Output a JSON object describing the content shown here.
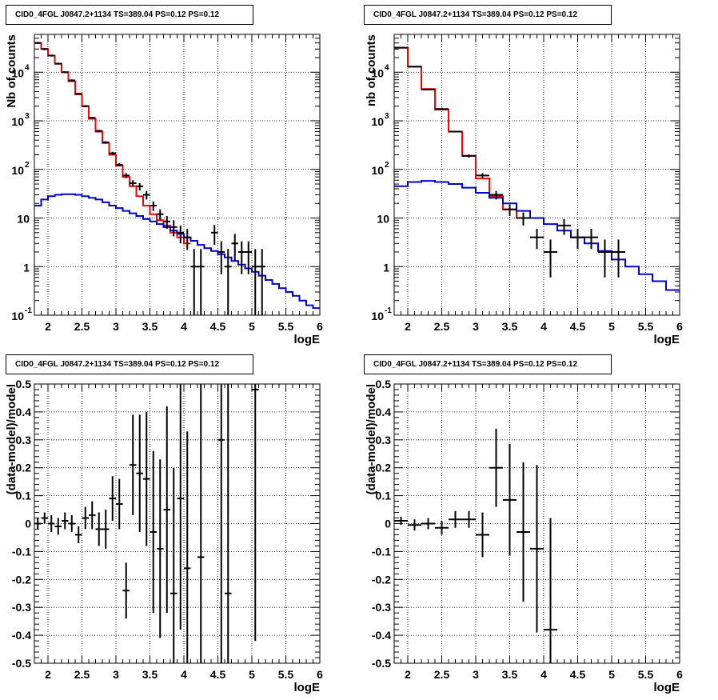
{
  "chart_data": [
    {
      "type": "step+errorbar",
      "title": "CID0_4FGL J0847.2+1134 TS=389.04 PS=0.12 PS=0.12",
      "xlabel": "logE",
      "ylabel": "Nb of counts",
      "xlim": [
        1.8,
        6.0
      ],
      "ylim": [
        0.1,
        60000
      ],
      "yscale": "log",
      "xticks": [
        "2",
        "2.5",
        "3",
        "3.5",
        "4",
        "4.5",
        "5",
        "5.5",
        "6"
      ],
      "yticks": [
        "10^-1",
        "1",
        "10",
        "10^2",
        "10^3",
        "10^4"
      ],
      "grid": true,
      "series": [
        {
          "color": "#ff0000",
          "kind": "step",
          "xedges": [
            1.8,
            1.9,
            2.0,
            2.1,
            2.2,
            2.3,
            2.4,
            2.5,
            2.6,
            2.7,
            2.8,
            2.9,
            3.0,
            3.1,
            3.2,
            3.3,
            3.4,
            3.5,
            3.6,
            3.7,
            3.8,
            3.9,
            4.0,
            4.1
          ],
          "values": [
            40000,
            30000,
            22000,
            15000,
            10000,
            6500,
            3500,
            2000,
            1100,
            600,
            350,
            200,
            120,
            70,
            45,
            28,
            18,
            12,
            9,
            7,
            5,
            4,
            3
          ]
        },
        {
          "color": "#0000cc",
          "kind": "step",
          "xedges": [
            1.8,
            1.9,
            2.0,
            2.1,
            2.2,
            2.3,
            2.4,
            2.5,
            2.6,
            2.7,
            2.8,
            2.9,
            3.0,
            3.1,
            3.2,
            3.3,
            3.4,
            3.5,
            3.6,
            3.7,
            3.8,
            3.9,
            4.0,
            4.1,
            4.2,
            4.3,
            4.4,
            4.5,
            4.6,
            4.7,
            4.8,
            4.9,
            5.0,
            5.1,
            5.2,
            5.3,
            5.4,
            5.5,
            5.6,
            5.7,
            5.8,
            5.9,
            6.0
          ],
          "values": [
            18,
            24,
            28,
            30,
            31,
            31,
            30,
            28,
            26,
            24,
            21,
            18,
            16,
            14,
            12.5,
            11,
            9.5,
            8.5,
            7.5,
            6.5,
            5.5,
            4.7,
            4,
            3.4,
            2.8,
            2.4,
            2.1,
            1.8,
            1.55,
            1.3,
            1.1,
            0.92,
            0.78,
            0.65,
            0.53,
            0.44,
            0.36,
            0.3,
            0.25,
            0.2,
            0.16,
            0.14
          ]
        },
        {
          "color": "#000000",
          "kind": "points",
          "x": [
            1.85,
            1.95,
            2.05,
            2.15,
            2.25,
            2.35,
            2.45,
            2.55,
            2.65,
            2.75,
            2.85,
            2.95,
            3.05,
            3.15,
            3.25,
            3.35,
            3.45,
            3.55,
            3.65,
            3.75,
            3.85,
            3.95,
            4.05,
            4.15,
            4.25,
            4.45,
            4.55,
            4.65,
            4.75,
            4.85,
            4.95,
            5.05,
            5.15
          ],
          "y": [
            40000,
            30000,
            22000,
            15000,
            10000,
            6800,
            3600,
            2000,
            1150,
            620,
            360,
            215,
            125,
            75,
            52,
            45,
            30,
            18,
            12,
            8.5,
            6.5,
            5,
            4,
            1,
            1,
            5,
            2,
            1,
            3,
            2,
            2,
            1,
            1
          ],
          "ylo": [
            38000,
            28500,
            21000,
            14300,
            9600,
            6500,
            3450,
            1900,
            1100,
            590,
            340,
            200,
            115,
            66,
            44,
            37,
            24,
            14,
            9,
            6,
            4.2,
            3,
            2.2,
            0.1,
            0.1,
            2.8,
            0.7,
            0.1,
            1.3,
            0.7,
            0.7,
            0.1,
            0.1
          ],
          "yhi": [
            42000,
            31500,
            23000,
            15700,
            10400,
            7100,
            3750,
            2100,
            1200,
            650,
            380,
            230,
            135,
            84,
            60,
            52,
            36,
            22,
            15,
            11,
            9,
            7,
            6,
            2.3,
            2.3,
            7.2,
            3.3,
            2.3,
            4.7,
            3.3,
            3.3,
            2.3,
            2.3
          ]
        }
      ]
    },
    {
      "type": "step+errorbar",
      "title": "CID0_4FGL J0847.2+1134 TS=389.04 PS=0.12 PS=0.12",
      "xlabel": "logE",
      "ylabel": "nb of counts",
      "xlim": [
        1.8,
        6.0
      ],
      "ylim": [
        0.1,
        60000
      ],
      "yscale": "log",
      "xticks": [
        "2",
        "2.5",
        "3",
        "3.5",
        "4",
        "4.5",
        "5",
        "5.5",
        "6"
      ],
      "yticks": [
        "10^-1",
        "1",
        "10",
        "10^2",
        "10^3",
        "10^4"
      ],
      "grid": true,
      "series": [
        {
          "color": "#ff0000",
          "kind": "step",
          "xedges": [
            1.8,
            2.0,
            2.2,
            2.4,
            2.6,
            2.8,
            3.0,
            3.2,
            3.4,
            3.6,
            3.8
          ],
          "values": [
            32000,
            13000,
            4500,
            1700,
            600,
            190,
            65,
            28,
            15,
            10
          ]
        },
        {
          "color": "#0000cc",
          "kind": "step",
          "xedges": [
            1.8,
            2.0,
            2.2,
            2.4,
            2.6,
            2.8,
            3.0,
            3.2,
            3.4,
            3.6,
            3.8,
            4.0,
            4.2,
            4.4,
            4.6,
            4.8,
            5.0,
            5.2,
            5.4,
            5.6,
            5.8,
            6.0
          ],
          "values": [
            45,
            55,
            58,
            55,
            50,
            42,
            33,
            26,
            20,
            14,
            10,
            7.5,
            5.5,
            4,
            3,
            2.1,
            1.4,
            1,
            0.7,
            0.5,
            0.33
          ]
        },
        {
          "color": "#000000",
          "kind": "points",
          "x": [
            1.9,
            2.1,
            2.3,
            2.5,
            2.7,
            2.9,
            3.1,
            3.3,
            3.5,
            3.7,
            3.9,
            4.1,
            4.3,
            4.5,
            4.7,
            4.9,
            5.1
          ],
          "y": [
            32000,
            13000,
            4400,
            1750,
            600,
            190,
            75,
            30,
            15,
            10,
            4,
            2,
            7,
            4,
            4,
            2,
            2
          ],
          "ylo": [
            31000,
            12600,
            4250,
            1650,
            580,
            175,
            66,
            24,
            11,
            7,
            2.3,
            0.6,
            4.5,
            2.3,
            2.3,
            0.6,
            0.6
          ],
          "yhi": [
            33000,
            13400,
            4550,
            1850,
            620,
            205,
            84,
            36,
            19,
            13,
            6,
            3.6,
            9.5,
            6,
            6,
            3.6,
            3.6
          ]
        }
      ]
    },
    {
      "type": "errorbar",
      "title": "CID0_4FGL J0847.2+1134 TS=389.04 PS=0.12 PS=0.12",
      "xlabel": "logE",
      "ylabel": "(data-model)/model",
      "xlim": [
        1.8,
        6.0
      ],
      "ylim": [
        -0.5,
        0.5
      ],
      "xticks": [
        "2",
        "2.5",
        "3",
        "3.5",
        "4",
        "4.5",
        "5",
        "5.5",
        "6"
      ],
      "yticks": [
        "-0.5",
        "-0.4",
        "-0.3",
        "-0.2",
        "-0.1",
        "0",
        "0.1",
        "0.2",
        "0.3",
        "0.4",
        "0.5"
      ],
      "grid": true,
      "series": [
        {
          "color": "#000000",
          "kind": "points",
          "x": [
            1.85,
            1.95,
            2.05,
            2.15,
            2.25,
            2.35,
            2.45,
            2.55,
            2.65,
            2.75,
            2.85,
            2.95,
            3.05,
            3.15,
            3.25,
            3.35,
            3.45,
            3.55,
            3.65,
            3.75,
            3.85,
            3.95,
            4.05,
            4.25,
            4.55,
            4.65,
            5.05
          ],
          "y": [
            0.0,
            0.02,
            0.0,
            -0.01,
            0.01,
            0.0,
            -0.04,
            0.02,
            0.03,
            -0.02,
            -0.02,
            0.09,
            0.07,
            -0.24,
            0.21,
            0.18,
            0.16,
            -0.03,
            -0.09,
            0.05,
            -0.25,
            0.09,
            -0.16,
            -0.12,
            0.3,
            -0.25,
            0.48
          ],
          "err": [
            0.02,
            0.02,
            0.03,
            0.03,
            0.03,
            0.03,
            0.03,
            0.04,
            0.05,
            0.06,
            0.07,
            0.08,
            0.09,
            0.1,
            0.18,
            0.21,
            0.24,
            0.29,
            0.32,
            0.37,
            0.45,
            0.47,
            0.49,
            0.7,
            0.8,
            0.8,
            0.9
          ]
        }
      ]
    },
    {
      "type": "errorbar",
      "title": "CID0_4FGL J0847.2+1134 TS=389.04 PS=0.12 PS=0.12",
      "xlabel": "logE",
      "ylabel": "(data-model)/model",
      "xlim": [
        1.8,
        6.0
      ],
      "ylim": [
        -0.5,
        0.5
      ],
      "xticks": [
        "2",
        "2.5",
        "3",
        "3.5",
        "4",
        "4.5",
        "5",
        "5.5",
        "6"
      ],
      "yticks": [
        "-0.5",
        "-0.4",
        "-0.3",
        "-0.2",
        "-0.1",
        "0",
        "0.1",
        "0.2",
        "0.3",
        "0.4",
        "0.5"
      ],
      "grid": true,
      "series": [
        {
          "color": "#000000",
          "kind": "points",
          "x": [
            1.9,
            2.1,
            2.3,
            2.5,
            2.7,
            2.9,
            3.1,
            3.3,
            3.5,
            3.7,
            3.9,
            4.1
          ],
          "y": [
            0.01,
            -0.005,
            0.0,
            -0.015,
            0.015,
            0.015,
            -0.04,
            0.2,
            0.085,
            -0.03,
            -0.09,
            -0.38
          ],
          "err": [
            0.015,
            0.02,
            0.02,
            0.025,
            0.03,
            0.03,
            0.08,
            0.14,
            0.2,
            0.25,
            0.3,
            0.4
          ]
        }
      ]
    }
  ]
}
